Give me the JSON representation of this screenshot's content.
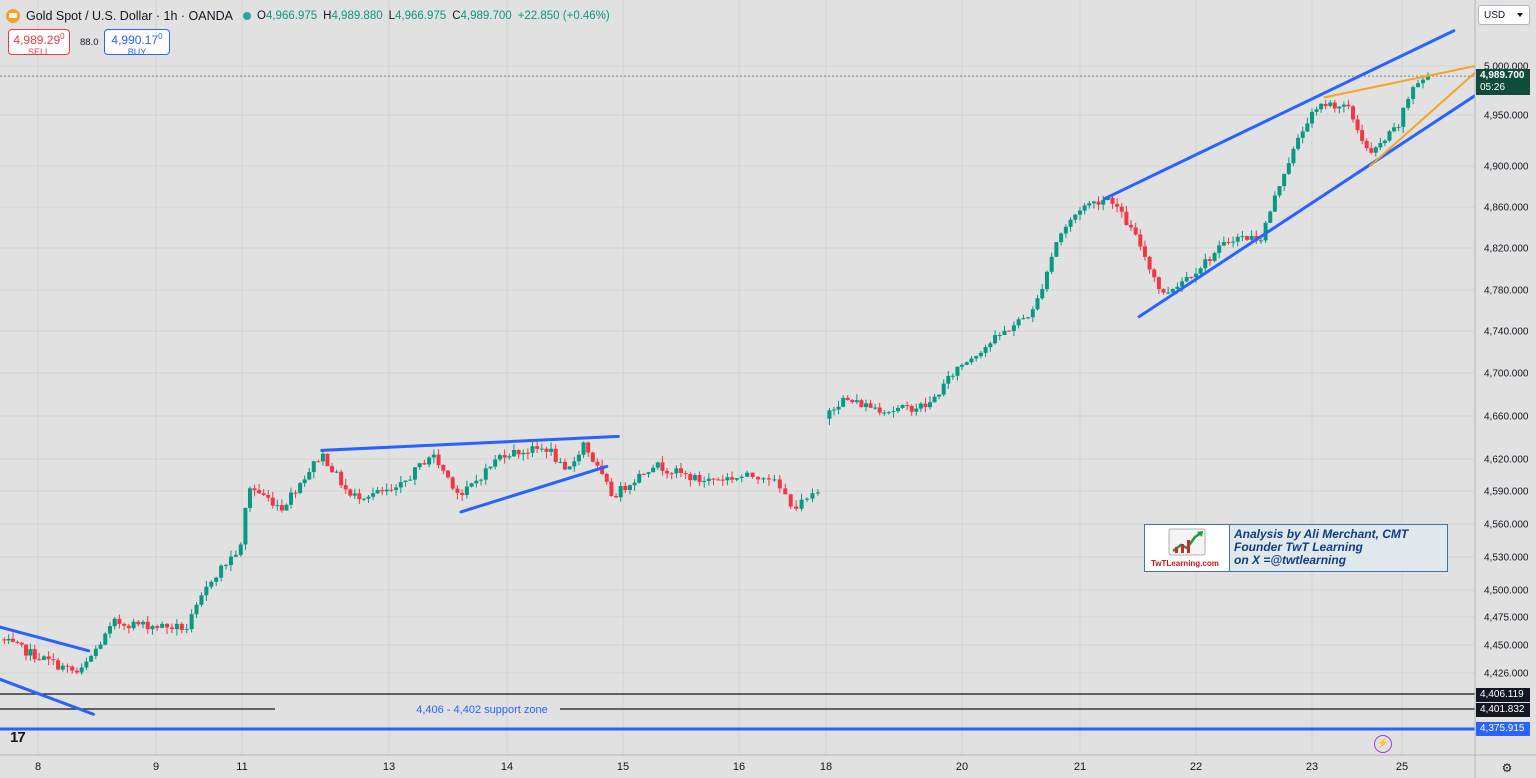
{
  "header": {
    "title": "Gold Spot / U.S. Dollar · 1h · OANDA",
    "o_label": "O",
    "o_value": "4,966.975",
    "h_label": "H",
    "h_value": "4,989.880",
    "l_label": "L",
    "l_value": "4,966.975",
    "c_label": "C",
    "c_value": "4,989.700",
    "change": "+22.850 (+0.46%)"
  },
  "trade": {
    "sell_price": "4,989.29",
    "sell_price_sup": "0",
    "sell_label": "SELL",
    "spread": "88.0",
    "buy_price": "4,990.17",
    "buy_price_sup": "0",
    "buy_label": "BUY"
  },
  "currency": "USD",
  "price_axis": {
    "current_price": "4,989.700",
    "countdown": "05:26",
    "level_1": "4,406.119",
    "level_2": "4,401.832",
    "level_3": "4,375.915"
  },
  "annotation": {
    "line1": "Analysis by Ali Merchant, CMT",
    "line2": "Founder TwT Learning",
    "line3": "on X =@twtlearning",
    "logo_text": "TwTLearning.com"
  },
  "watermark": "17",
  "colors": {
    "up": "#089981",
    "down": "#f23645",
    "trendline": "#2962ff",
    "wedge": "#f7a325",
    "background": "#e1e1e1"
  },
  "chart_data": {
    "type": "candlestick",
    "title": "Gold Spot / U.S. Dollar · 1h · OANDA",
    "timeframe": "1h",
    "y_axis_ticks": [
      5000,
      4950,
      4900,
      4860,
      4820,
      4780,
      4740,
      4700,
      4660,
      4620,
      4590,
      4560,
      4530,
      4500,
      4475,
      4450,
      4426
    ],
    "y_axis_labels": [
      "5,000.000",
      "4,950.000",
      "4,900.000",
      "4,860.000",
      "4,820.000",
      "4,780.000",
      "4,740.000",
      "4,700.000",
      "4,660.000",
      "4,620.000",
      "4,590.000",
      "4,560.000",
      "4,530.000",
      "4,500.000",
      "4,475.000",
      "4,450.000",
      "4,426.000"
    ],
    "x_axis_labels": [
      {
        "label": "8",
        "t": 0.35
      },
      {
        "label": "9",
        "t": 1.35
      },
      {
        "label": "11",
        "t": 2.05
      },
      {
        "label": "13",
        "t": 3.34
      },
      {
        "label": "14",
        "t": 4.34
      },
      {
        "label": "15",
        "t": 5.34
      },
      {
        "label": "16",
        "t": 6.34
      },
      {
        "label": "18",
        "t": 7.05
      },
      {
        "label": "20",
        "t": 8.24
      },
      {
        "label": "21",
        "t": 9.24
      },
      {
        "label": "22",
        "t": 10.24
      },
      {
        "label": "23",
        "t": 11.24
      },
      {
        "label": "25",
        "t": 12.03
      }
    ],
    "last_price": 4989.7,
    "key_points": [
      {
        "t": 0.0,
        "price": 4455
      },
      {
        "t": 0.7,
        "price": 4425
      },
      {
        "t": 1.0,
        "price": 4470
      },
      {
        "t": 1.6,
        "price": 4465
      },
      {
        "t": 1.8,
        "price": 4510
      },
      {
        "t": 2.05,
        "price": 4540
      },
      {
        "t": 2.1,
        "price": 4595
      },
      {
        "t": 2.4,
        "price": 4575
      },
      {
        "t": 2.75,
        "price": 4625
      },
      {
        "t": 3.0,
        "price": 4585
      },
      {
        "t": 3.4,
        "price": 4590
      },
      {
        "t": 3.7,
        "price": 4625
      },
      {
        "t": 3.95,
        "price": 4585
      },
      {
        "t": 4.3,
        "price": 4625
      },
      {
        "t": 4.7,
        "price": 4630
      },
      {
        "t": 4.85,
        "price": 4605
      },
      {
        "t": 5.0,
        "price": 4635
      },
      {
        "t": 5.25,
        "price": 4585
      },
      {
        "t": 5.6,
        "price": 4615
      },
      {
        "t": 6.0,
        "price": 4600
      },
      {
        "t": 6.55,
        "price": 4605
      },
      {
        "t": 6.75,
        "price": 4575
      },
      {
        "t": 6.95,
        "price": 4590
      },
      {
        "t": 7.05,
        "price": 4665
      },
      {
        "t": 7.2,
        "price": 4675
      },
      {
        "t": 7.6,
        "price": 4665
      },
      {
        "t": 7.95,
        "price": 4670
      },
      {
        "t": 8.2,
        "price": 4705
      },
      {
        "t": 8.55,
        "price": 4735
      },
      {
        "t": 8.85,
        "price": 4760
      },
      {
        "t": 9.05,
        "price": 4830
      },
      {
        "t": 9.25,
        "price": 4860
      },
      {
        "t": 9.5,
        "price": 4870
      },
      {
        "t": 9.75,
        "price": 4825
      },
      {
        "t": 9.95,
        "price": 4775
      },
      {
        "t": 10.25,
        "price": 4800
      },
      {
        "t": 10.55,
        "price": 4830
      },
      {
        "t": 10.8,
        "price": 4830
      },
      {
        "t": 11.0,
        "price": 4895
      },
      {
        "t": 11.2,
        "price": 4945
      },
      {
        "t": 11.35,
        "price": 4962
      },
      {
        "t": 11.55,
        "price": 4958
      },
      {
        "t": 11.75,
        "price": 4910
      },
      {
        "t": 12.0,
        "price": 4940
      },
      {
        "t": 12.12,
        "price": 4980
      },
      {
        "t": 12.25,
        "price": 4990
      }
    ],
    "horizontal_levels": [
      4406.119,
      4401.832,
      4375.915
    ],
    "trendlines": [
      {
        "style": "channel",
        "t1": 9.45,
        "p1": 4868,
        "t2": 12.45,
        "p2": 5036
      },
      {
        "style": "channel",
        "t1": 9.75,
        "p1": 4754,
        "t2": 12.95,
        "p2": 4997
      },
      {
        "style": "wedge",
        "t1": 11.35,
        "p1": 4968,
        "t2": 12.7,
        "p2": 5002
      },
      {
        "style": "wedge",
        "t1": 11.75,
        "p1": 4900,
        "t2": 12.7,
        "p2": 5002
      },
      {
        "style": "flag",
        "t1": 2.75,
        "p1": 4628,
        "t2": 5.3,
        "p2": 4641
      },
      {
        "style": "flag",
        "t1": 3.95,
        "p1": 4571,
        "t2": 5.2,
        "p2": 4613
      },
      {
        "style": "flag",
        "t1": 0.0,
        "p1": 4466,
        "t2": 0.78,
        "p2": 4445
      },
      {
        "style": "flag",
        "t1": 0.0,
        "p1": 4420,
        "t2": 0.82,
        "p2": 4395
      }
    ],
    "annotations": [
      "4,406 - 4,402 support zone"
    ],
    "grid": true
  }
}
